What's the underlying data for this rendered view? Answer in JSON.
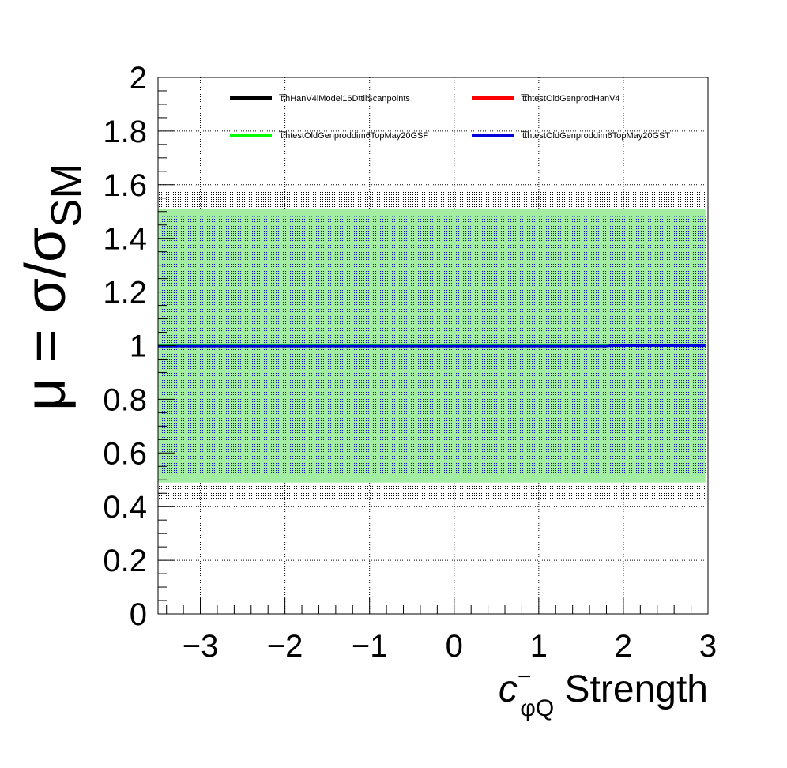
{
  "chart_data": {
    "type": "line",
    "xlabel": {
      "symbol": "c",
      "superscript": "−",
      "subscript": "φQ",
      "suffix": " Strength"
    },
    "ylabel": {
      "main": "μ = σ/σ",
      "subscript": "SM"
    },
    "xlim": [
      -3.5,
      3.0
    ],
    "ylim": [
      0,
      2.0
    ],
    "x_ticks": [
      -3,
      -2,
      -1,
      0,
      1,
      2,
      3
    ],
    "x_tick_labels": [
      "−3",
      "−2",
      "−1",
      "0",
      "1",
      "2",
      "3"
    ],
    "y_ticks": [
      0,
      0.2,
      0.4,
      0.6,
      0.8,
      1.0,
      1.2,
      1.4,
      1.6,
      1.8,
      2.0
    ],
    "y_tick_labels": [
      "0",
      "0.2",
      "0.4",
      "0.6",
      "0.8",
      "1",
      "1.2",
      "1.4",
      "1.6",
      "1.8",
      "2"
    ],
    "grid": true,
    "bands": [
      {
        "name": "outer",
        "x": [
          -3.5,
          2.97
        ],
        "low": 0.43,
        "high": 1.58,
        "color": "#000000",
        "pattern": "dots"
      },
      {
        "name": "green",
        "x": [
          -3.5,
          2.97
        ],
        "low": 0.49,
        "high": 1.51,
        "color": "#a3eda3",
        "pattern": "solid"
      },
      {
        "name": "inner",
        "x": [
          -3.5,
          2.97
        ],
        "low": 0.52,
        "high": 1.48,
        "color": "#0000cc",
        "pattern": "dots"
      }
    ],
    "series": [
      {
        "name": "t̅t̅hHanV4lModel16DttllScanpoints",
        "color": "#000000",
        "x": [
          -3.5,
          0,
          1.8,
          2.97
        ],
        "y": [
          1.0,
          1.0,
          1.0,
          1.0
        ]
      },
      {
        "name": "t̅t̅htestOldGenprodHanV4",
        "color": "#ff0000",
        "x": [
          -3.5,
          0,
          1.8,
          2.97
        ],
        "y": [
          1.0,
          1.0,
          1.0,
          1.0
        ]
      },
      {
        "name": "t̅t̅htestOldGenproddim6TopMay20GSF",
        "color": "#00ff00",
        "x": [
          -3.5,
          0,
          1.8,
          2.97
        ],
        "y": [
          1.0,
          1.0,
          1.0,
          1.0
        ]
      },
      {
        "name": "t̅t̅htestOldGenproddim6TopMay20GST",
        "color": "#0000dd",
        "x": [
          -3.5,
          -1.0,
          0,
          1.8,
          1.85,
          2.97
        ],
        "y": [
          0.998,
          0.998,
          0.998,
          0.998,
          1.0,
          1.0
        ]
      }
    ],
    "legend_position": "top",
    "legend": [
      {
        "label": "t̅t̅hHanV4lModel16DttllScanpoints",
        "color": "#000000"
      },
      {
        "label": "t̅t̅htestOldGenprodHanV4",
        "color": "#ff0000"
      },
      {
        "label": "t̅t̅htestOldGenproddim6TopMay20GSF",
        "color": "#00ff00"
      },
      {
        "label": "t̅t̅htestOldGenproddim6TopMay20GST",
        "color": "#0000dd"
      }
    ]
  }
}
